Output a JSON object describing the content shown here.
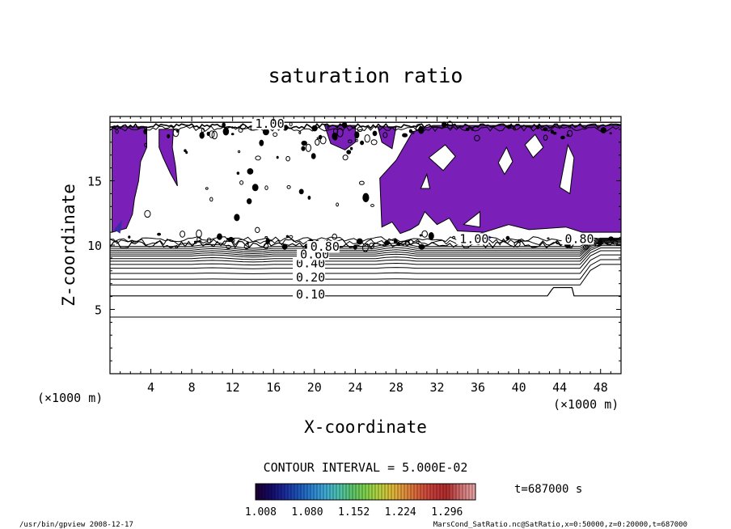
{
  "chart_data": {
    "type": "heatmap",
    "title": "saturation ratio",
    "xlabel": "X-coordinate",
    "ylabel": "Z-coordinate",
    "x_unit_label": "(×1000 m)",
    "z_unit_label": "(×1000 m)",
    "xlim": [
      0,
      50
    ],
    "ylim": [
      0,
      20
    ],
    "x_ticks": [
      4,
      8,
      12,
      16,
      20,
      24,
      28,
      32,
      36,
      40,
      44,
      48
    ],
    "x_tick_labels": [
      "4",
      "8",
      "12",
      "16",
      "20",
      "24",
      "28",
      "32",
      "36",
      "40",
      "44",
      "48"
    ],
    "y_ticks": [
      5,
      10,
      15
    ],
    "y_tick_labels": [
      "5",
      "10",
      "15"
    ],
    "contour_interval_text": "CONTOUR INTERVAL = 5.000E-02",
    "time_text": "t=687000 s",
    "colorbar": {
      "tick_values": [
        1.008,
        1.08,
        1.152,
        1.224,
        1.296
      ],
      "tick_labels": [
        "1.008",
        "1.080",
        "1.152",
        "1.224",
        "1.296"
      ],
      "colors": [
        "#1a0033",
        "#140a66",
        "#1a2a99",
        "#1c52b8",
        "#2a7fcf",
        "#3fa9d6",
        "#4cc2b0",
        "#5ac46a",
        "#7fd14a",
        "#b8d23e",
        "#e0b83a",
        "#e08a3a",
        "#d65a3a",
        "#c43a3a",
        "#b02a2a",
        "#d07070",
        "#e6a0a0"
      ],
      "fill_color": "#7a1fb8"
    },
    "contour_labels": [
      {
        "text": "0.10",
        "value": 0.1,
        "x": 18.2,
        "z": 6.05
      },
      {
        "text": "0.20",
        "value": 0.2,
        "x": 18.2,
        "z": 7.35
      },
      {
        "text": "0.40",
        "value": 0.4,
        "x": 18.2,
        "z": 8.45
      },
      {
        "text": "0.60",
        "value": 0.6,
        "x": 18.6,
        "z": 9.15
      },
      {
        "text": "0.80",
        "value": 0.8,
        "x": 19.6,
        "z": 9.75
      },
      {
        "text": "1.00",
        "value": 1.0,
        "x": 34.2,
        "z": 10.35
      },
      {
        "text": "0.80",
        "value": 0.8,
        "x": 44.5,
        "z": 10.35
      },
      {
        "text": "1.00",
        "value": 1.0,
        "x": 14.2,
        "z": 19.3
      }
    ],
    "footer_left": "/usr/bin/gpview   2008-12-17",
    "footer_right": "MarsCond_SatRatio.nc@SatRatio,x=0:50000,z=0:20000,t=687000"
  }
}
